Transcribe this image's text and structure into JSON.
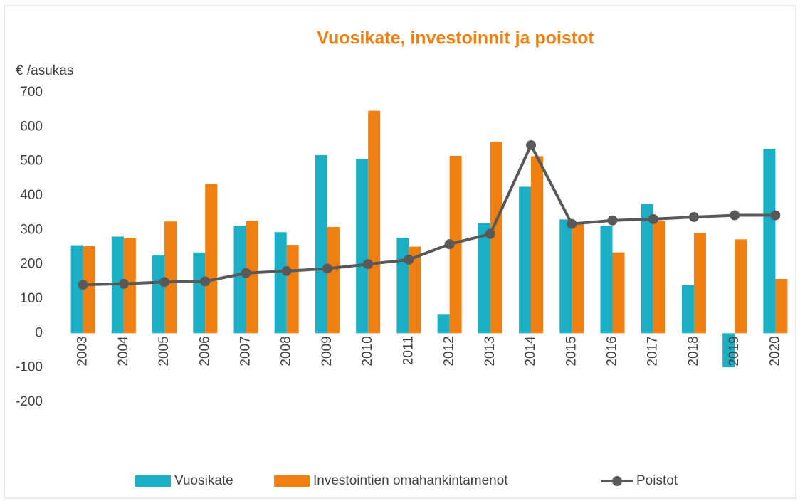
{
  "chart_data": {
    "type": "bar_line",
    "title": "Vuosikate, investoinnit ja poistot",
    "y_label": "€ /asukas",
    "categories": [
      "2003",
      "2004",
      "2005",
      "2006",
      "2007",
      "2008",
      "2009",
      "2010",
      "2011",
      "2012",
      "2013",
      "2014",
      "2015",
      "2016",
      "2017",
      "2018",
      "2019",
      "2020"
    ],
    "series": [
      {
        "name": "Vuosikate",
        "type": "bar",
        "color": "#1aafc4",
        "values": [
          256,
          281,
          226,
          235,
          313,
          294,
          518,
          506,
          278,
          56,
          320,
          426,
          331,
          312,
          376,
          141,
          -99,
          536
        ]
      },
      {
        "name": "Investointien omahankintamenot",
        "type": "bar",
        "color": "#f07f12",
        "values": [
          253,
          276,
          325,
          434,
          327,
          257,
          309,
          647,
          252,
          516,
          556,
          515,
          318,
          235,
          326,
          291,
          273,
          158
        ]
      },
      {
        "name": "Poistot",
        "type": "line",
        "color": "#595959",
        "values": [
          141,
          144,
          149,
          151,
          175,
          181,
          188,
          201,
          214,
          259,
          289,
          547,
          318,
          328,
          332,
          338,
          343,
          343
        ]
      }
    ],
    "ylim": [
      -200,
      700
    ],
    "yticks": [
      -200,
      -100,
      0,
      100,
      200,
      300,
      400,
      500,
      600,
      700
    ],
    "legend": "bottom"
  }
}
